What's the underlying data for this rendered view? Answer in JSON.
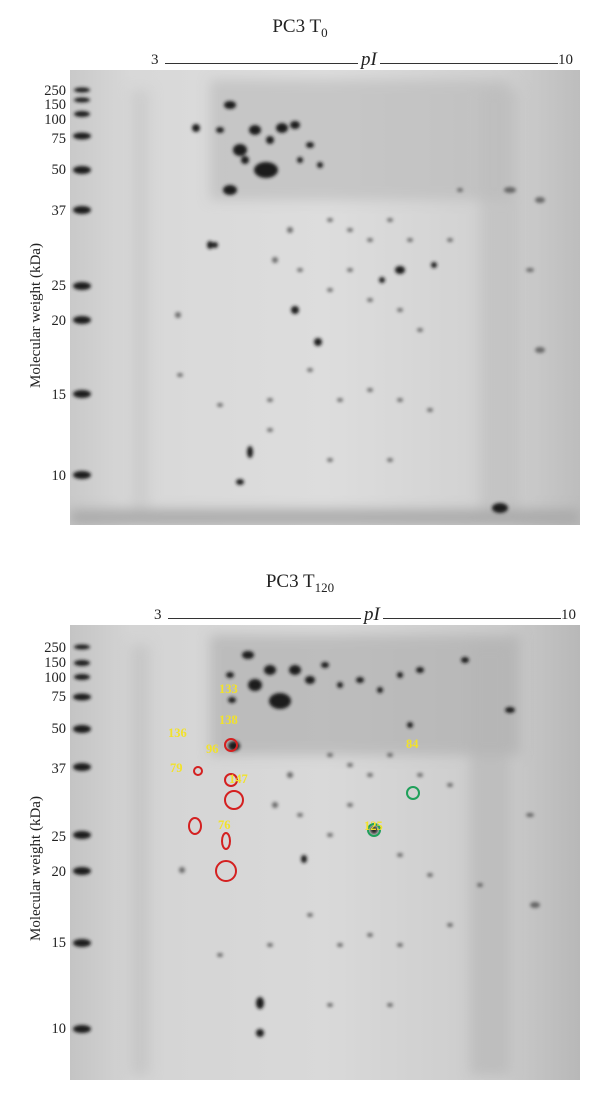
{
  "panels": [
    {
      "title_main": "PC3 T",
      "title_sub": "0",
      "pi_left": "3",
      "pi_label": "pI",
      "pi_right": "10",
      "ylabel": "Molecular weight (kDa)",
      "mw_markers": [
        "250",
        "150",
        "100",
        "75",
        "50",
        "37",
        "25",
        "20",
        "15",
        "10"
      ]
    },
    {
      "title_main": "PC3 T",
      "title_sub": "120",
      "pi_left": "3",
      "pi_label": "pI",
      "pi_right": "10",
      "ylabel": "Molecular weight (kDa)",
      "mw_markers": [
        "250",
        "150",
        "100",
        "75",
        "50",
        "37",
        "25",
        "20",
        "15",
        "10"
      ],
      "spots": [
        {
          "label": "133",
          "color": "#d42020"
        },
        {
          "label": "138",
          "color": "#d42020"
        },
        {
          "label": "136",
          "color": "#d42020"
        },
        {
          "label": "96",
          "color": "#d42020"
        },
        {
          "label": "79",
          "color": "#d42020"
        },
        {
          "label": "147",
          "color": "#d42020"
        },
        {
          "label": "76",
          "color": "#d42020"
        },
        {
          "label": "84",
          "color": "#1fa05a"
        },
        {
          "label": "125",
          "color": "#1fa05a"
        }
      ]
    }
  ]
}
